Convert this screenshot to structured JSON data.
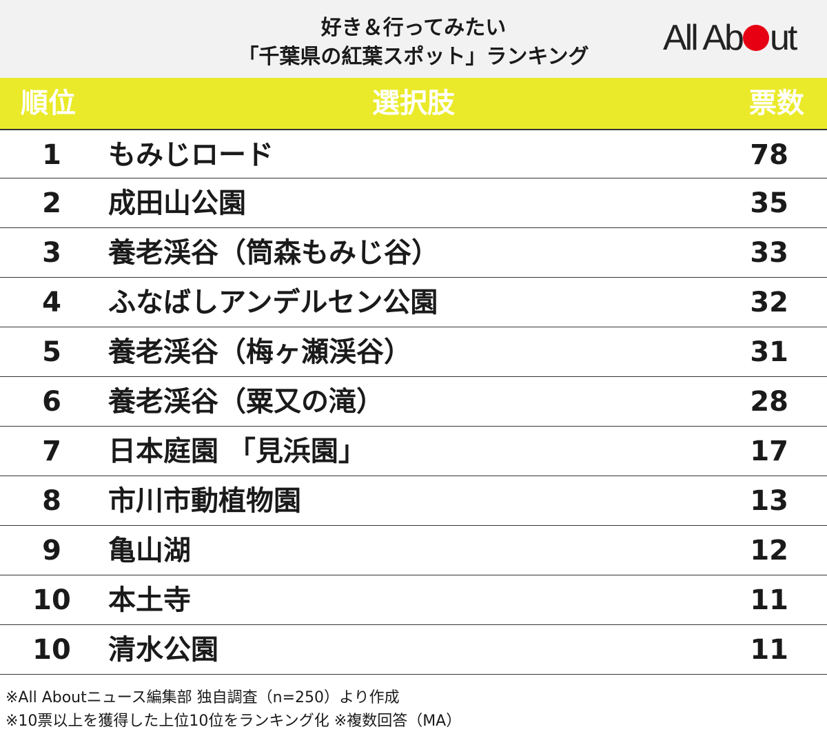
{
  "header": {
    "title_line1": "好き＆行ってみたい",
    "title_line2": "「千葉県の紅葉スポット」ランキング",
    "logo_text_left": "All Ab",
    "logo_text_right": "ut"
  },
  "table": {
    "columns": [
      "順位",
      "選択肢",
      "票数"
    ],
    "rows": [
      {
        "rank": "1",
        "name": "もみじロード",
        "votes": "78"
      },
      {
        "rank": "2",
        "name": "成田山公園",
        "votes": "35"
      },
      {
        "rank": "3",
        "name": "養老渓谷（筒森もみじ谷）",
        "votes": "33"
      },
      {
        "rank": "4",
        "name": "ふなばしアンデルセン公園",
        "votes": "32"
      },
      {
        "rank": "5",
        "name": "養老渓谷（梅ヶ瀬渓谷）",
        "votes": "31"
      },
      {
        "rank": "6",
        "name": "養老渓谷（粟又の滝）",
        "votes": "28"
      },
      {
        "rank": "7",
        "name": "日本庭園 「見浜園」",
        "votes": "17"
      },
      {
        "rank": "8",
        "name": "市川市動植物園",
        "votes": "13"
      },
      {
        "rank": "9",
        "name": "亀山湖",
        "votes": "12"
      },
      {
        "rank": "10",
        "name": "本土寺",
        "votes": "11"
      },
      {
        "rank": "10",
        "name": "清水公園",
        "votes": "11"
      }
    ]
  },
  "notes": [
    "※All Aboutニュース編集部 独自調査（n=250）より作成",
    "※10票以上を獲得した上位10位をランキング化 ※複数回答（MA）"
  ],
  "colors": {
    "header_bg": "#f2f2f2",
    "column_header_bg": "#eaea2a",
    "logo_dot": "#e60012"
  }
}
